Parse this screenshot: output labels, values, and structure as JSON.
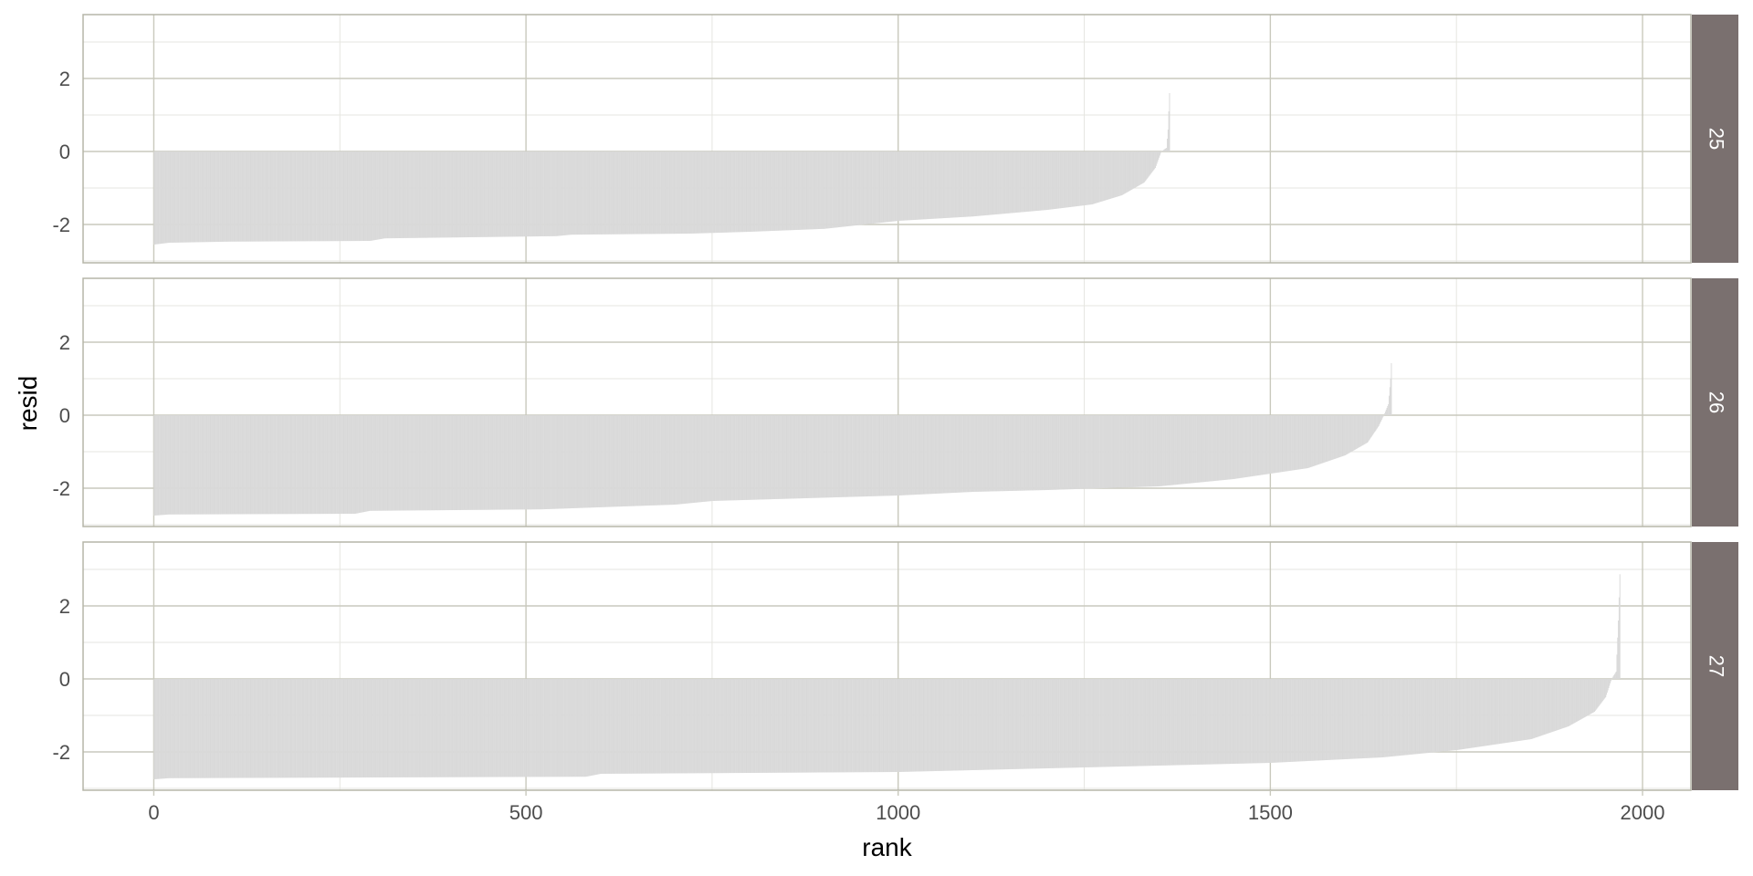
{
  "colors": {
    "bar_fill": "#d9d9d9",
    "panel_border": "#b5b5a8",
    "major_grid": "#c9c9bd",
    "minor_grid": "#e6e6e0",
    "strip_fill": "#7a706f",
    "strip_text": "#ffffff"
  },
  "chart_data": {
    "type": "bar",
    "facet_by": "rows",
    "xlabel": "rank",
    "ylabel": "resid",
    "xlim": [
      -95,
      2065
    ],
    "ylim": [
      -3.05,
      3.75
    ],
    "x_ticks": [
      0,
      500,
      1000,
      1500,
      2000
    ],
    "y_ticks": [
      -2,
      0,
      2
    ],
    "grid": true,
    "panels": [
      {
        "strip_label": "25",
        "n": 1365,
        "profile": [
          [
            0,
            -2.55
          ],
          [
            20,
            -2.5
          ],
          [
            100,
            -2.47
          ],
          [
            290,
            -2.45
          ],
          [
            310,
            -2.38
          ],
          [
            540,
            -2.32
          ],
          [
            560,
            -2.28
          ],
          [
            720,
            -2.25
          ],
          [
            800,
            -2.2
          ],
          [
            900,
            -2.12
          ],
          [
            1000,
            -1.9
          ],
          [
            1100,
            -1.78
          ],
          [
            1200,
            -1.6
          ],
          [
            1260,
            -1.45
          ],
          [
            1300,
            -1.2
          ],
          [
            1330,
            -0.85
          ],
          [
            1345,
            -0.45
          ],
          [
            1353,
            0
          ],
          [
            1360,
            0.1
          ],
          [
            1362,
            0.6
          ],
          [
            1364,
            1.6
          ]
        ]
      },
      {
        "strip_label": "26",
        "n": 1663,
        "profile": [
          [
            0,
            -2.75
          ],
          [
            20,
            -2.72
          ],
          [
            270,
            -2.7
          ],
          [
            290,
            -2.62
          ],
          [
            520,
            -2.58
          ],
          [
            700,
            -2.45
          ],
          [
            750,
            -2.35
          ],
          [
            1000,
            -2.2
          ],
          [
            1100,
            -2.1
          ],
          [
            1200,
            -2.05
          ],
          [
            1350,
            -1.95
          ],
          [
            1450,
            -1.75
          ],
          [
            1550,
            -1.45
          ],
          [
            1600,
            -1.1
          ],
          [
            1630,
            -0.75
          ],
          [
            1645,
            -0.3
          ],
          [
            1652,
            0
          ],
          [
            1658,
            0.3
          ],
          [
            1661,
            1.0
          ],
          [
            1663,
            1.85
          ]
        ]
      },
      {
        "strip_label": "27",
        "n": 1970,
        "profile": [
          [
            0,
            -2.75
          ],
          [
            20,
            -2.72
          ],
          [
            580,
            -2.68
          ],
          [
            600,
            -2.6
          ],
          [
            1000,
            -2.55
          ],
          [
            1300,
            -2.4
          ],
          [
            1500,
            -2.3
          ],
          [
            1650,
            -2.15
          ],
          [
            1750,
            -1.95
          ],
          [
            1850,
            -1.65
          ],
          [
            1900,
            -1.3
          ],
          [
            1935,
            -0.9
          ],
          [
            1950,
            -0.5
          ],
          [
            1958,
            0
          ],
          [
            1964,
            0.2
          ],
          [
            1967,
            1.6
          ],
          [
            1970,
            3.5
          ]
        ]
      }
    ]
  }
}
